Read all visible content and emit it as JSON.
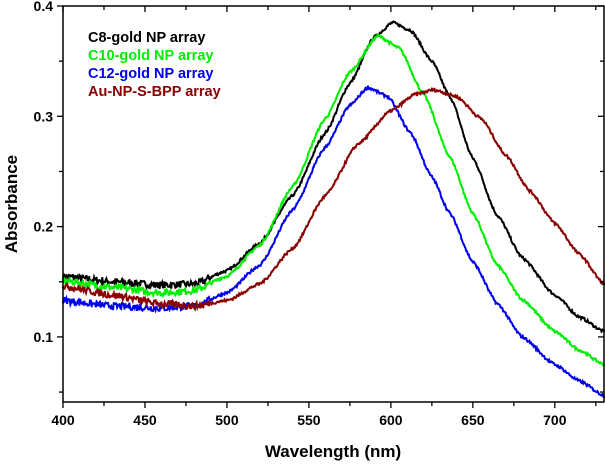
{
  "chart_data": {
    "type": "scatter",
    "title": "",
    "xlabel": "Wavelength (nm)",
    "ylabel": "Absorbance",
    "xlim": [
      400,
      730
    ],
    "ylim": [
      0.041,
      0.4
    ],
    "xticks": [
      400,
      450,
      500,
      550,
      600,
      650,
      700
    ],
    "xtick_labels": [
      "400",
      "450",
      "500",
      "550",
      "600",
      "650",
      "700"
    ],
    "xminor_step": 25,
    "yticks": [
      0.1,
      0.2,
      0.3,
      0.4
    ],
    "ytick_labels": [
      "0.1",
      "0.2",
      "0.3",
      "0.4"
    ],
    "yminor_step": 0.05,
    "grid": false,
    "frame": "box",
    "legend_position": "top-left",
    "series": [
      {
        "name": "C8-gold NP array",
        "color": "#000000",
        "x": [
          400,
          430,
          460,
          480,
          500,
          520,
          540,
          560,
          575,
          590,
          601,
          612,
          625,
          636,
          650,
          665,
          680,
          700,
          715,
          730
        ],
        "y": [
          0.155,
          0.15,
          0.147,
          0.148,
          0.16,
          0.185,
          0.228,
          0.285,
          0.33,
          0.372,
          0.385,
          0.378,
          0.35,
          0.318,
          0.262,
          0.21,
          0.172,
          0.138,
          0.118,
          0.105
        ]
      },
      {
        "name": "C10-gold NP array",
        "color": "#00ee00",
        "x": [
          400,
          430,
          460,
          480,
          500,
          520,
          540,
          560,
          575,
          592,
          605,
          620,
          636,
          650,
          665,
          680,
          700,
          715,
          730
        ],
        "y": [
          0.151,
          0.145,
          0.14,
          0.142,
          0.155,
          0.183,
          0.236,
          0.298,
          0.34,
          0.373,
          0.362,
          0.32,
          0.263,
          0.212,
          0.165,
          0.134,
          0.105,
          0.088,
          0.075
        ]
      },
      {
        "name": "C12-gold NP array",
        "color": "#0000ee",
        "x": [
          400,
          430,
          460,
          480,
          500,
          520,
          540,
          560,
          575,
          586,
          598,
          612,
          625,
          636,
          650,
          665,
          680,
          700,
          715,
          730
        ],
        "y": [
          0.133,
          0.128,
          0.126,
          0.128,
          0.14,
          0.165,
          0.215,
          0.272,
          0.31,
          0.326,
          0.318,
          0.285,
          0.245,
          0.212,
          0.168,
          0.13,
          0.1,
          0.075,
          0.06,
          0.047
        ]
      },
      {
        "name": "Au-NP-S-BPP array",
        "color": "#8b0000",
        "x": [
          400,
          430,
          460,
          480,
          500,
          520,
          540,
          560,
          580,
          600,
          615,
          626,
          640,
          655,
          670,
          685,
          700,
          715,
          730
        ],
        "y": [
          0.146,
          0.138,
          0.13,
          0.128,
          0.133,
          0.148,
          0.18,
          0.228,
          0.275,
          0.305,
          0.32,
          0.324,
          0.318,
          0.298,
          0.265,
          0.232,
          0.203,
          0.175,
          0.148
        ]
      }
    ]
  }
}
